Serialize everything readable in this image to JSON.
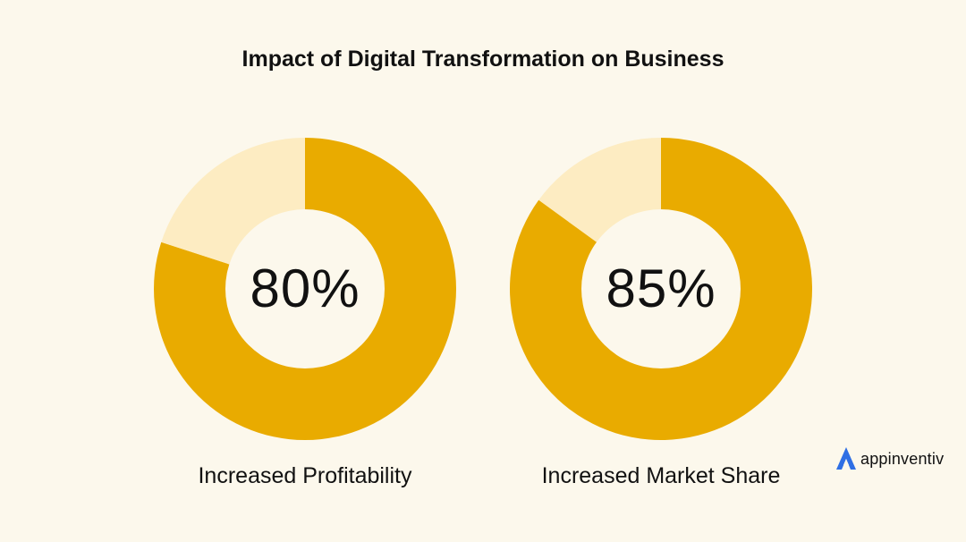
{
  "title": "Impact of Digital Transformation on Business",
  "colors": {
    "background": "#fcf8ec",
    "filled": "#e9ab00",
    "remainder": "#fdecc2",
    "hole": "#fcf8ec",
    "logo_accent": "#2f6fe4"
  },
  "chart_data": [
    {
      "type": "pie",
      "title": "",
      "center_label": "80%",
      "caption": "Increased Profitability",
      "values": [
        80,
        20
      ],
      "colors": [
        "#e9ab00",
        "#fdecc2"
      ]
    },
    {
      "type": "pie",
      "title": "",
      "center_label": "85%",
      "caption": "Increased Market Share",
      "values": [
        85,
        15
      ],
      "colors": [
        "#e9ab00",
        "#fdecc2"
      ]
    }
  ],
  "logo": {
    "text": "appinventiv",
    "icon": "appinventiv-logo-icon"
  }
}
